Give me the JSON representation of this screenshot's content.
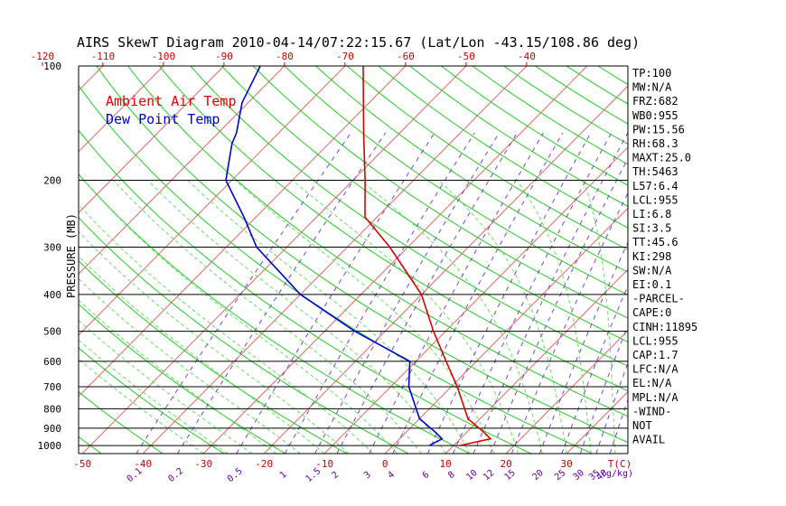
{
  "chart_data": {
    "type": "line",
    "title": "AIRS SkewT Diagram 2010-04-14/07:22:15.67 (Lat/Lon -43.15/108.86 deg)",
    "ylabel": "PRESSURE (MB)",
    "y_scale": "log",
    "ylim": [
      1050,
      100
    ],
    "y_tick_labels": [
      "100",
      "200",
      "300",
      "400",
      "500",
      "600",
      "700",
      "800",
      "900",
      "1000"
    ],
    "y_ticks": [
      100,
      200,
      300,
      400,
      500,
      600,
      700,
      800,
      900,
      1000
    ],
    "top_temp_ticks": [
      -120,
      -110,
      -100,
      -90,
      -80,
      -70,
      -60,
      -50,
      -40
    ],
    "bottom_temp_ticks": [
      -50,
      -40,
      -30,
      -20,
      -10,
      0,
      10,
      20,
      30
    ],
    "bottom_temp_unit": "T(C)",
    "mixing_ratio_labels": [
      "0.1",
      "0.2",
      "0.5",
      "1",
      "1.5",
      "2",
      "3",
      "4",
      "6",
      "8",
      "10",
      "12",
      "15",
      "20",
      "25",
      "30",
      "35",
      "40"
    ],
    "mixing_ratio_values": [
      0.1,
      0.2,
      0.5,
      1,
      1.5,
      2,
      3,
      4,
      6,
      8,
      10,
      12,
      15,
      20,
      25,
      30,
      35,
      40
    ],
    "mixing_ratio_unit": "(g/kg)",
    "series": [
      {
        "name": "Ambient Air Temp",
        "color": "#dd0000",
        "points": [
          {
            "p": 1000,
            "t": 11
          },
          {
            "p": 960,
            "t": 15
          },
          {
            "p": 925,
            "t": 13
          },
          {
            "p": 850,
            "t": 8
          },
          {
            "p": 700,
            "t": 1
          },
          {
            "p": 600,
            "t": -5
          },
          {
            "p": 500,
            "t": -12
          },
          {
            "p": 400,
            "t": -20
          },
          {
            "p": 300,
            "t": -33
          },
          {
            "p": 250,
            "t": -42
          },
          {
            "p": 200,
            "t": -48
          },
          {
            "p": 150,
            "t": -56
          },
          {
            "p": 100,
            "t": -67
          }
        ]
      },
      {
        "name": "Dew Point Temp",
        "color": "#0000cc",
        "points": [
          {
            "p": 1000,
            "t": 6
          },
          {
            "p": 960,
            "t": 7
          },
          {
            "p": 925,
            "t": 5
          },
          {
            "p": 850,
            "t": 0
          },
          {
            "p": 700,
            "t": -7
          },
          {
            "p": 600,
            "t": -11
          },
          {
            "p": 500,
            "t": -25
          },
          {
            "p": 400,
            "t": -40
          },
          {
            "p": 300,
            "t": -55
          },
          {
            "p": 250,
            "t": -62
          },
          {
            "p": 200,
            "t": -71
          },
          {
            "p": 160,
            "t": -76
          },
          {
            "p": 150,
            "t": -77
          },
          {
            "p": 125,
            "t": -81
          },
          {
            "p": 100,
            "t": -84
          }
        ]
      }
    ],
    "colors": {
      "isotherm": "#e06666",
      "dry_adiabat": "#22cc22",
      "moist_adiabat": "#66dd66",
      "mixing_ratio": "#7744cc",
      "isobar": "#000000",
      "text": "#000000",
      "tick_label": "#cc0000",
      "mixing_label": "#660099"
    }
  },
  "legend": {
    "items": [
      {
        "label": "Ambient Air Temp",
        "color": "#dd0000"
      },
      {
        "label": "Dew Point Temp",
        "color": "#0000cc"
      }
    ]
  },
  "indices": [
    "TP:100",
    "MW:N/A",
    "FRZ:682",
    "WB0:955",
    "PW:15.56",
    "RH:68.3",
    "MAXT:25.0",
    "TH:5463",
    "L57:6.4",
    "LCL:955",
    "LI:6.8",
    "SI:3.5",
    "TT:45.6",
    "KI:298",
    "SW:N/A",
    "EI:0.1",
    "-PARCEL-",
    "CAPE:0",
    "CINH:11895",
    "LCL:955",
    "CAP:1.7",
    "LFC:N/A",
    "EL:N/A",
    "MPL:N/A",
    "-WIND-",
    "NOT",
    "AVAIL"
  ]
}
